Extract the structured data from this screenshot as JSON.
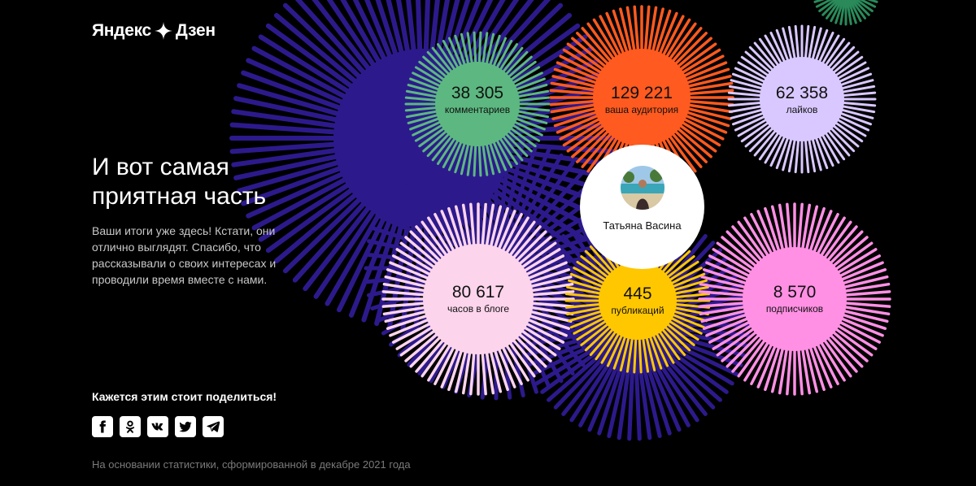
{
  "logo": {
    "part1": "Яндекс",
    "part2": "Дзен"
  },
  "headline": "И вот самая приятная часть",
  "lead": "Ваши итоги уже здесь! Кстати, они отлично выглядят. Спасибо, что рассказывали о своих интересах и проводили время вместе с нами.",
  "share": {
    "title": "Кажется этим стоит поделиться!",
    "buttons": [
      {
        "name": "facebook",
        "icon": "facebook-icon"
      },
      {
        "name": "odnoklassniki",
        "icon": "odnoklassniki-icon"
      },
      {
        "name": "vk",
        "icon": "vk-icon"
      },
      {
        "name": "twitter",
        "icon": "twitter-icon"
      },
      {
        "name": "telegram",
        "icon": "telegram-icon"
      }
    ]
  },
  "footnote": "На основании статистики, сформированной в декабре 2021 года",
  "profile": {
    "name": "Татьяна Васина"
  },
  "stats": {
    "comments": {
      "value": "38 305",
      "label": "комментариев",
      "color": "#5cb880"
    },
    "audience": {
      "value": "129 221",
      "label": "ваша аудитория",
      "color": "#ff5a1f"
    },
    "likes": {
      "value": "62 358",
      "label": "лайков",
      "color": "#d9c8ff"
    },
    "hours": {
      "value": "80 617",
      "label": "часов в блоге",
      "color": "#fcd4ec"
    },
    "publications": {
      "value": "445",
      "label": "публикаций",
      "color": "#ffc700"
    },
    "subscribers": {
      "value": "8 570",
      "label": "подписчиков",
      "color": "#ff90e4"
    }
  },
  "colors": {
    "accent_purple": "#2c1a8c",
    "background": "#000000"
  }
}
